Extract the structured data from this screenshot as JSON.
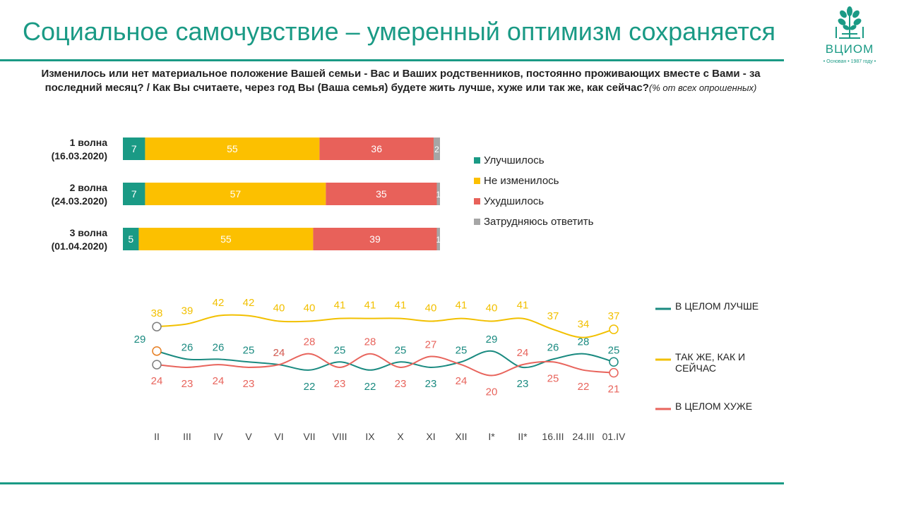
{
  "title": "Социальное самочувствие – умеренный оптимизм сохраняется",
  "logo": {
    "name": "ВЦИОМ",
    "tagline": "• Основан • 1987 году •"
  },
  "question": {
    "text": "Изменилось или нет материальное положение Вашей семьи - Вас и Ваших родственников, постоянно проживающих вместе с Вами - за последний месяц? / Как Вы считаете, через год Вы (Ваша семья) будете жить лучше, хуже или так же, как сейчас?",
    "note": "(% от всех опрошенных)"
  },
  "colors": {
    "teal": "#1a9a85",
    "yellow": "#fcc000",
    "red": "#e8615a",
    "gray": "#a6a6a6",
    "line_teal": "#1a8a80",
    "line_yellow": "#f2c000",
    "line_red": "#e8645c"
  },
  "chart_data": [
    {
      "type": "bar",
      "stacked": true,
      "orientation": "horizontal",
      "categories": [
        "1 волна\n(16.03.2020)",
        "2 волна\n(24.03.2020)",
        "3 волна\n(01.04.2020)"
      ],
      "series": [
        {
          "name": "Улучшилось",
          "values": [
            7,
            7,
            5
          ],
          "color": "#1a9a85"
        },
        {
          "name": "Не изменилось",
          "values": [
            55,
            57,
            55
          ],
          "color": "#fcc000"
        },
        {
          "name": "Ухудшилось",
          "values": [
            36,
            35,
            39
          ],
          "color": "#e8615a"
        },
        {
          "name": "Затрудняюсь ответить",
          "values": [
            2,
            1,
            1
          ],
          "color": "#a6a6a6"
        }
      ],
      "legend": "right"
    },
    {
      "type": "line",
      "categories": [
        "II",
        "III",
        "IV",
        "V",
        "VI",
        "VII",
        "VIII",
        "IX",
        "X",
        "XI",
        "XII",
        "I*",
        "II*",
        "16.III",
        "24.III",
        "01.IV"
      ],
      "series": [
        {
          "name": "В ЦЕЛОМ ЛУЧШЕ",
          "values": [
            29,
            26,
            26,
            25,
            24,
            22,
            25,
            22,
            25,
            23,
            25,
            29,
            23,
            26,
            28,
            25
          ],
          "color": "#1a8a80"
        },
        {
          "name": "ТАК ЖЕ, КАК И СЕЙЧАС",
          "values": [
            38,
            39,
            42,
            42,
            40,
            40,
            41,
            41,
            41,
            40,
            41,
            40,
            41,
            37,
            34,
            37
          ],
          "color": "#f2c000"
        },
        {
          "name": "В ЦЕЛОМ ХУЖЕ",
          "values": [
            24,
            23,
            24,
            23,
            24,
            28,
            23,
            28,
            23,
            27,
            24,
            20,
            24,
            25,
            22,
            21
          ],
          "color": "#e8645c"
        }
      ],
      "legend": "right",
      "grid": false
    }
  ]
}
